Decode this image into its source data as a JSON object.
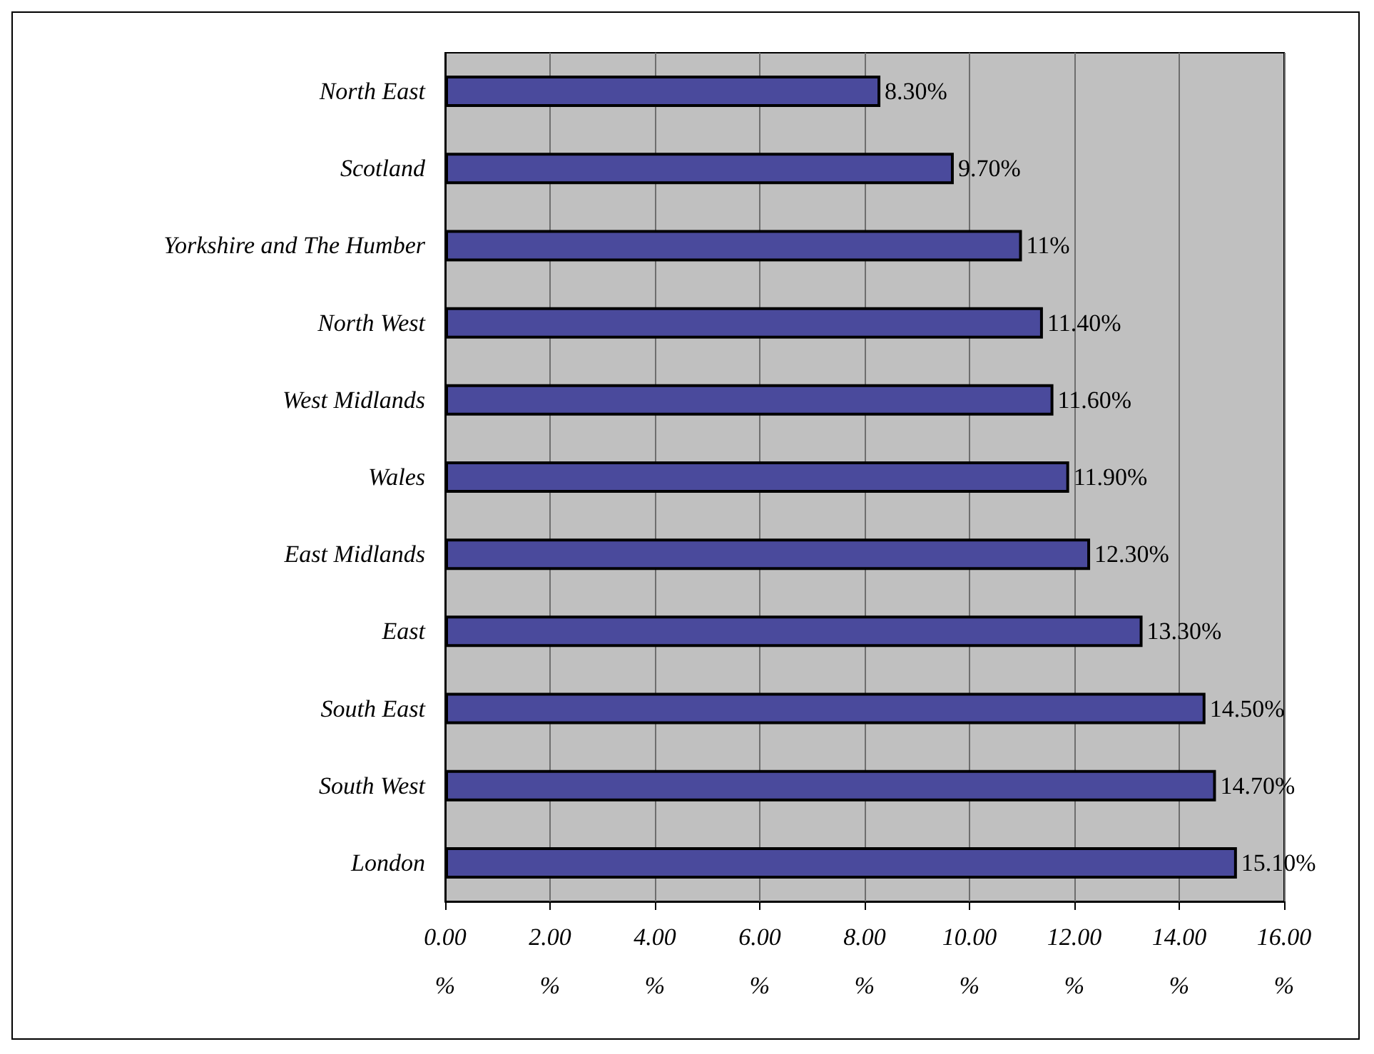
{
  "chart_data": {
    "type": "bar",
    "orientation": "horizontal",
    "categories": [
      "North East",
      "Scotland",
      "Yorkshire and The Humber",
      "North West",
      "West Midlands",
      "Wales",
      "East Midlands",
      "East",
      "South East",
      "South West",
      "London"
    ],
    "values": [
      8.3,
      9.7,
      11,
      11.4,
      11.6,
      11.9,
      12.3,
      13.3,
      14.5,
      14.7,
      15.1
    ],
    "value_labels": [
      "8.30%",
      "9.70%",
      "11%",
      "11.40%",
      "11.60%",
      "11.90%",
      "12.30%",
      "13.30%",
      "14.50%",
      "14.70%",
      "15.10%"
    ],
    "color": "#4a4a9c",
    "xlim": [
      0,
      16
    ],
    "xticks": [
      {
        "value": 0,
        "label": "0.00%"
      },
      {
        "value": 2,
        "label": "2.00%"
      },
      {
        "value": 4,
        "label": "4.00%"
      },
      {
        "value": 6,
        "label": "6.00%"
      },
      {
        "value": 8,
        "label": "8.00%"
      },
      {
        "value": 10,
        "label": "10.00%"
      },
      {
        "value": 12,
        "label": "12.00%"
      },
      {
        "value": 14,
        "label": "14.00%"
      },
      {
        "value": 16,
        "label": "16.00%"
      }
    ],
    "grid": "x"
  }
}
